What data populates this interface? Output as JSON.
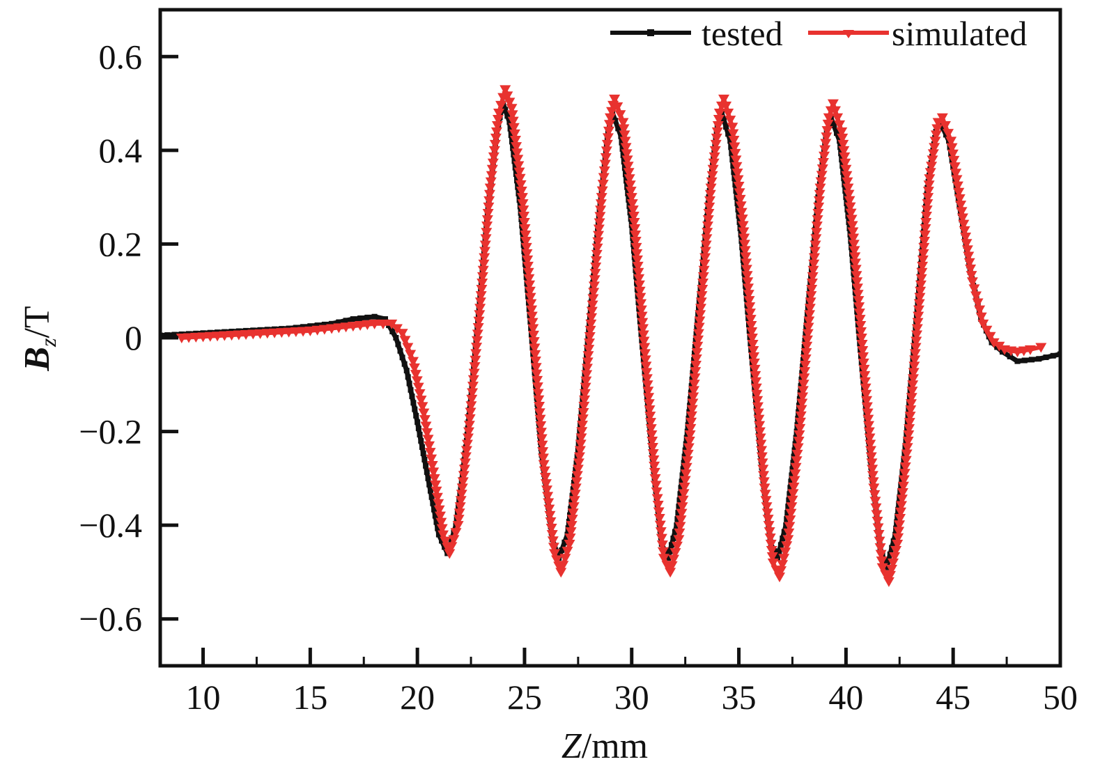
{
  "chart_data": {
    "type": "line",
    "title": "",
    "xlabel": {
      "italic": "Z",
      "rest": "/mm"
    },
    "ylabel": {
      "main": "B",
      "sub": "z",
      "rest": "/T"
    },
    "xlim": [
      8,
      50
    ],
    "ylim": [
      -0.7,
      0.7
    ],
    "xticks": [
      10,
      15,
      20,
      25,
      30,
      35,
      40,
      45,
      50
    ],
    "xtick_labels": [
      "10",
      "15",
      "20",
      "25",
      "30",
      "35",
      "40",
      "45",
      "50"
    ],
    "yticks": [
      -0.6,
      -0.4,
      -0.2,
      0,
      0.2,
      0.4,
      0.6
    ],
    "ytick_labels": [
      "−0.6",
      "−0.4",
      "−0.2",
      "0",
      "0.2",
      "0.4",
      "0.6"
    ],
    "grid": false,
    "legend_position": "top-right",
    "series": [
      {
        "name": "tested",
        "color": "#111111",
        "marker": "square",
        "points": [
          [
            8.0,
            0.005
          ],
          [
            10.0,
            0.01
          ],
          [
            12.0,
            0.015
          ],
          [
            14.0,
            0.02
          ],
          [
            15.0,
            0.025
          ],
          [
            16.0,
            0.03
          ],
          [
            17.0,
            0.04
          ],
          [
            18.0,
            0.045
          ],
          [
            18.5,
            0.04
          ],
          [
            19.0,
            0.0
          ],
          [
            19.5,
            -0.07
          ],
          [
            20.0,
            -0.18
          ],
          [
            20.5,
            -0.3
          ],
          [
            21.0,
            -0.42
          ],
          [
            21.4,
            -0.46
          ],
          [
            21.8,
            -0.4
          ],
          [
            22.3,
            -0.22
          ],
          [
            22.8,
            0.02
          ],
          [
            23.3,
            0.28
          ],
          [
            23.7,
            0.44
          ],
          [
            24.0,
            0.5
          ],
          [
            24.3,
            0.46
          ],
          [
            24.8,
            0.28
          ],
          [
            25.3,
            0.02
          ],
          [
            25.8,
            -0.25
          ],
          [
            26.3,
            -0.43
          ],
          [
            26.6,
            -0.47
          ],
          [
            27.0,
            -0.42
          ],
          [
            27.5,
            -0.24
          ],
          [
            28.0,
            0.02
          ],
          [
            28.5,
            0.27
          ],
          [
            28.9,
            0.44
          ],
          [
            29.1,
            0.48
          ],
          [
            29.5,
            0.43
          ],
          [
            30.0,
            0.24
          ],
          [
            30.5,
            -0.02
          ],
          [
            31.0,
            -0.27
          ],
          [
            31.4,
            -0.44
          ],
          [
            31.7,
            -0.47
          ],
          [
            32.1,
            -0.4
          ],
          [
            32.6,
            -0.2
          ],
          [
            33.1,
            0.05
          ],
          [
            33.6,
            0.3
          ],
          [
            34.0,
            0.45
          ],
          [
            34.2,
            0.48
          ],
          [
            34.6,
            0.42
          ],
          [
            35.1,
            0.22
          ],
          [
            35.6,
            -0.04
          ],
          [
            36.1,
            -0.29
          ],
          [
            36.5,
            -0.44
          ],
          [
            36.8,
            -0.47
          ],
          [
            37.2,
            -0.4
          ],
          [
            37.7,
            -0.2
          ],
          [
            38.2,
            0.05
          ],
          [
            38.7,
            0.3
          ],
          [
            39.1,
            0.44
          ],
          [
            39.3,
            0.47
          ],
          [
            39.7,
            0.42
          ],
          [
            40.2,
            0.22
          ],
          [
            40.7,
            -0.04
          ],
          [
            41.2,
            -0.29
          ],
          [
            41.6,
            -0.45
          ],
          [
            41.9,
            -0.49
          ],
          [
            42.3,
            -0.42
          ],
          [
            42.8,
            -0.22
          ],
          [
            43.3,
            0.05
          ],
          [
            43.8,
            0.32
          ],
          [
            44.2,
            0.44
          ],
          [
            44.4,
            0.46
          ],
          [
            44.8,
            0.42
          ],
          [
            45.3,
            0.28
          ],
          [
            45.8,
            0.14
          ],
          [
            46.3,
            0.04
          ],
          [
            46.8,
            -0.01
          ],
          [
            47.3,
            -0.03
          ],
          [
            48.0,
            -0.05
          ],
          [
            49.0,
            -0.045
          ],
          [
            50.0,
            -0.035
          ]
        ]
      },
      {
        "name": "simulated",
        "color": "#e8322f",
        "marker": "triangle-down",
        "points": [
          [
            9.0,
            0.0
          ],
          [
            11.0,
            0.005
          ],
          [
            13.0,
            0.01
          ],
          [
            15.0,
            0.015
          ],
          [
            17.0,
            0.025
          ],
          [
            18.0,
            0.03
          ],
          [
            18.8,
            0.03
          ],
          [
            19.3,
            0.01
          ],
          [
            19.8,
            -0.05
          ],
          [
            20.3,
            -0.16
          ],
          [
            20.8,
            -0.3
          ],
          [
            21.2,
            -0.42
          ],
          [
            21.5,
            -0.46
          ],
          [
            21.9,
            -0.4
          ],
          [
            22.4,
            -0.2
          ],
          [
            22.9,
            0.05
          ],
          [
            23.4,
            0.32
          ],
          [
            23.8,
            0.48
          ],
          [
            24.1,
            0.53
          ],
          [
            24.4,
            0.49
          ],
          [
            24.9,
            0.3
          ],
          [
            25.4,
            0.02
          ],
          [
            25.9,
            -0.27
          ],
          [
            26.4,
            -0.46
          ],
          [
            26.7,
            -0.5
          ],
          [
            27.1,
            -0.44
          ],
          [
            27.6,
            -0.24
          ],
          [
            28.1,
            0.03
          ],
          [
            28.6,
            0.3
          ],
          [
            29.0,
            0.47
          ],
          [
            29.2,
            0.51
          ],
          [
            29.6,
            0.46
          ],
          [
            30.1,
            0.26
          ],
          [
            30.6,
            -0.02
          ],
          [
            31.1,
            -0.3
          ],
          [
            31.5,
            -0.47
          ],
          [
            31.8,
            -0.5
          ],
          [
            32.2,
            -0.43
          ],
          [
            32.7,
            -0.22
          ],
          [
            33.2,
            0.05
          ],
          [
            33.7,
            0.32
          ],
          [
            34.1,
            0.48
          ],
          [
            34.3,
            0.51
          ],
          [
            34.7,
            0.45
          ],
          [
            35.2,
            0.24
          ],
          [
            35.7,
            -0.04
          ],
          [
            36.2,
            -0.32
          ],
          [
            36.6,
            -0.48
          ],
          [
            36.9,
            -0.51
          ],
          [
            37.3,
            -0.43
          ],
          [
            37.8,
            -0.22
          ],
          [
            38.3,
            0.05
          ],
          [
            38.8,
            0.32
          ],
          [
            39.2,
            0.47
          ],
          [
            39.4,
            0.5
          ],
          [
            39.8,
            0.44
          ],
          [
            40.3,
            0.24
          ],
          [
            40.8,
            -0.04
          ],
          [
            41.3,
            -0.32
          ],
          [
            41.7,
            -0.49
          ],
          [
            42.0,
            -0.52
          ],
          [
            42.4,
            -0.44
          ],
          [
            42.9,
            -0.22
          ],
          [
            43.4,
            0.06
          ],
          [
            43.9,
            0.34
          ],
          [
            44.3,
            0.46
          ],
          [
            44.5,
            0.47
          ],
          [
            44.9,
            0.42
          ],
          [
            45.4,
            0.27
          ],
          [
            45.9,
            0.12
          ],
          [
            46.4,
            0.03
          ],
          [
            46.9,
            -0.01
          ],
          [
            47.4,
            -0.025
          ],
          [
            48.0,
            -0.03
          ],
          [
            48.6,
            -0.025
          ],
          [
            49.1,
            -0.02
          ]
        ]
      }
    ]
  }
}
